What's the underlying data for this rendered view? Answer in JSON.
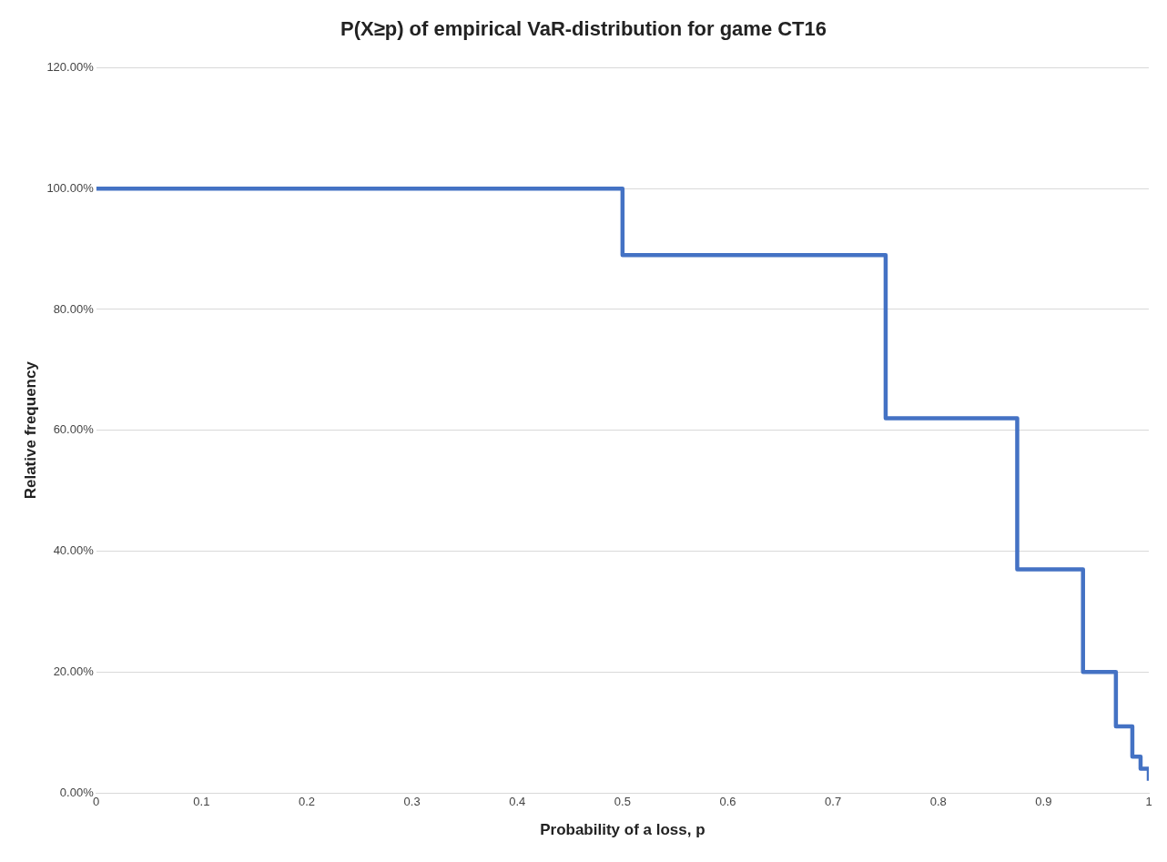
{
  "chart_data": {
    "type": "step",
    "title": "P(X≥p) of empirical VaR-distribution for game CT16",
    "xlabel": "Probability of a loss, p",
    "ylabel": "Relative frequency",
    "x": [
      0,
      0.5,
      0.75,
      0.875,
      0.9375,
      0.96875,
      0.984375,
      0.9921875,
      1
    ],
    "series": [
      {
        "color": "#4472c4",
        "values": [
          100,
          89,
          62,
          37,
          20,
          11,
          6,
          4,
          2
        ]
      }
    ],
    "xlim": [
      0,
      1
    ],
    "xticks": [
      0,
      0.1,
      0.2,
      0.3,
      0.4,
      0.5,
      0.6,
      0.7,
      0.8,
      0.9,
      1
    ],
    "ylim": [
      0,
      120
    ],
    "yticks": [
      {
        "value": 0,
        "label": "0.00%"
      },
      {
        "value": 20,
        "label": "20.00%"
      },
      {
        "value": 40,
        "label": "40.00%"
      },
      {
        "value": 60,
        "label": "60.00%"
      },
      {
        "value": 80,
        "label": "80.00%"
      },
      {
        "value": 100,
        "label": "100.00%"
      },
      {
        "value": 120,
        "label": "120.00%"
      }
    ],
    "grid": "y",
    "legend": false,
    "marker": "none",
    "line_style": "solid"
  }
}
